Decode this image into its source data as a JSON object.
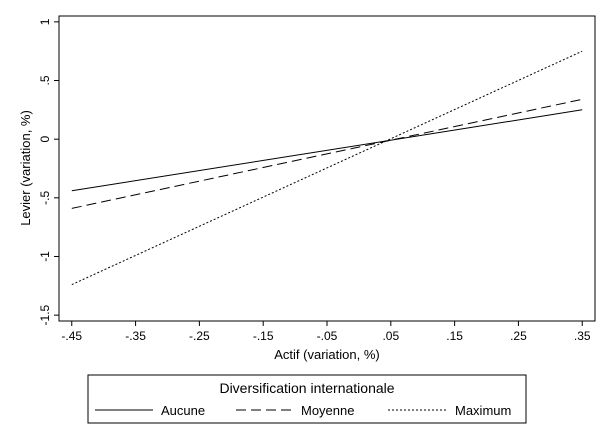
{
  "chart_data": {
    "type": "line",
    "title": "",
    "xlabel": "Actif (variation, %)",
    "ylabel": "Levier (variation, %)",
    "xlim": [
      -0.47,
      0.37
    ],
    "ylim": [
      -1.55,
      1.05
    ],
    "x_ticks": [
      -0.45,
      -0.35,
      -0.25,
      -0.15,
      -0.05,
      0.05,
      0.15,
      0.25,
      0.35
    ],
    "x_tick_labels": [
      "-.45",
      "-.35",
      "-.25",
      "-.15",
      "-.05",
      ".05",
      ".15",
      ".25",
      ".35"
    ],
    "y_ticks": [
      1,
      0.5,
      0,
      -0.5,
      -1,
      -1.5
    ],
    "y_tick_labels": [
      "1",
      ".5",
      "0",
      "-.5",
      "-1",
      "-1.5"
    ],
    "grid": false,
    "legend": {
      "title": "Diversification internationale",
      "position": "bottom"
    },
    "series": [
      {
        "name": "Aucune",
        "style": "solid",
        "x": [
          -0.45,
          0.35
        ],
        "y": [
          -0.44,
          0.25
        ]
      },
      {
        "name": "Moyenne",
        "style": "dashed",
        "x": [
          -0.45,
          0.35
        ],
        "y": [
          -0.59,
          0.34
        ]
      },
      {
        "name": "Maximum",
        "style": "dotted",
        "x": [
          -0.45,
          0.35
        ],
        "y": [
          -1.24,
          0.75
        ]
      }
    ]
  }
}
